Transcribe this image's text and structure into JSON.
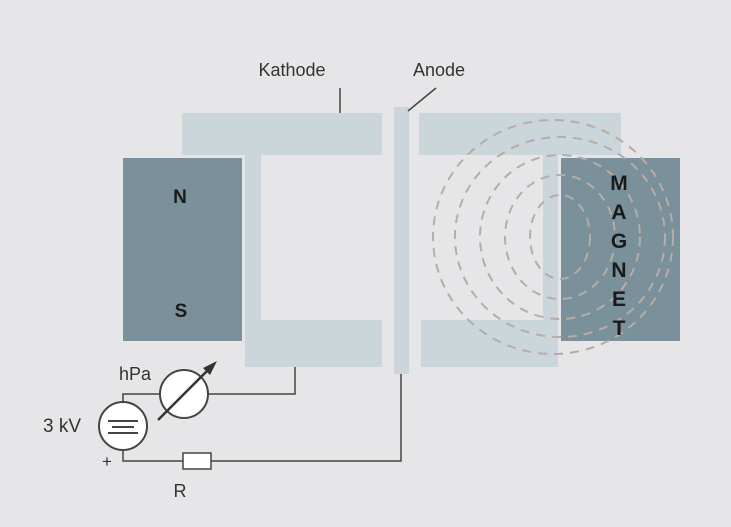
{
  "labels": {
    "cathode": "Kathode",
    "anode": "Anode",
    "north": "N",
    "south": "S",
    "magnet_letters": [
      "M",
      "A",
      "G",
      "N",
      "E",
      "T"
    ],
    "gauge": "hPa",
    "voltage": "3 kV",
    "plus": "+",
    "resistor": "R"
  },
  "colors": {
    "background": "#e6e6e8",
    "electrode": "#cbd6db",
    "magnet": "#7a919c",
    "wire": "#444444",
    "field_lines": "#b8aca4",
    "text": "#333333"
  },
  "icons": {
    "gauge": "pressure-gauge-icon",
    "source": "dc-voltage-source-icon",
    "resistor": "resistor-icon"
  }
}
